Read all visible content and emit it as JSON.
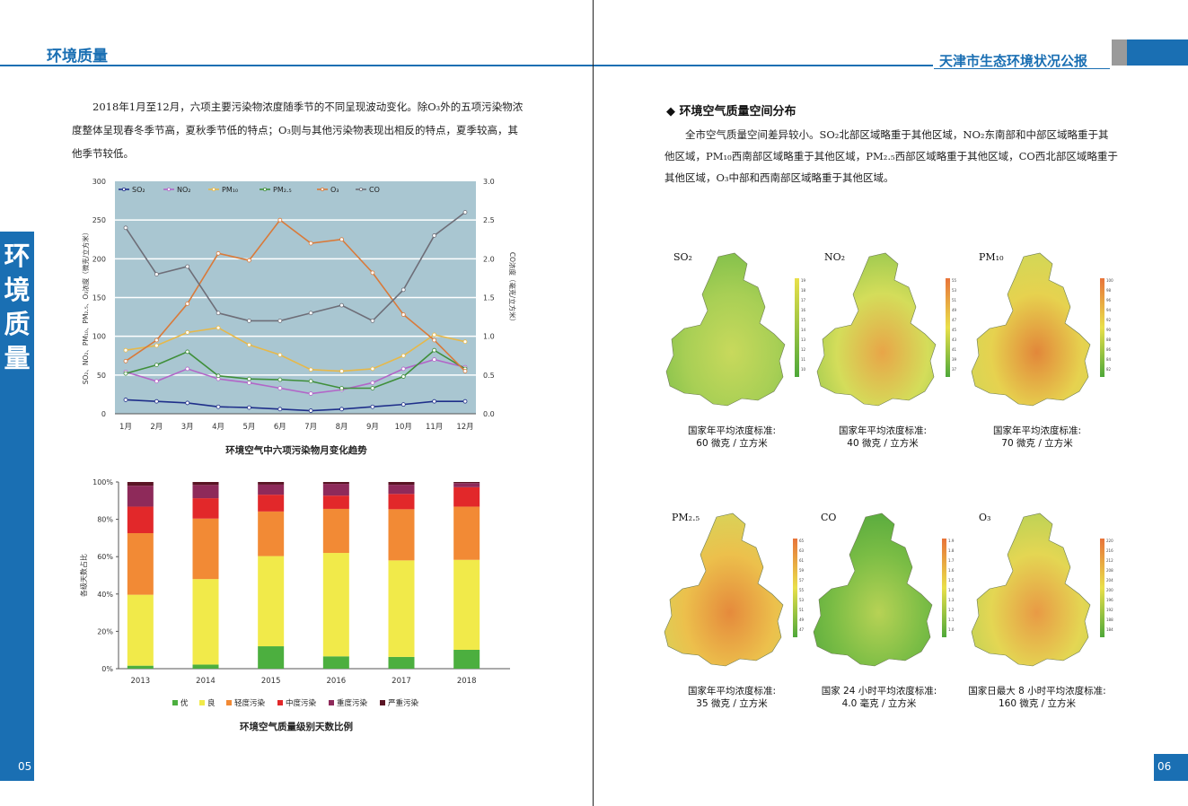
{
  "header": {
    "left_title": "环境质量",
    "right_title": "天津市生态环境状况公报"
  },
  "sidebar": {
    "vertical_title": "环\n境\n质\n量"
  },
  "page_numbers": {
    "left": "05",
    "right": "06"
  },
  "left": {
    "intro_lines": [
      "2018年1月至12月，六项主要污染物浓度随季节的不同呈现波动变化。除O₃外的五项污染物浓",
      "度整体呈现春冬季节高，夏秋季节低的特点；O₃则与其他污染物表现出相反的特点，夏季较高，其",
      "他季节较低。"
    ],
    "line_caption": "环境空气中六项污染物月变化趋势",
    "bar_caption": "环境空气质量级别天数比例"
  },
  "right": {
    "section_title": "◆  环境空气质量空间分布",
    "section_lines": [
      "全市空气质量空间差异较小。SO₂北部区域略重于其他区域，NO₂东南部和中部区域略重于其",
      "他区域，PM₁₀西南部区域略重于其他区域，PM₂.₅西部区域略重于其他区域，CO西北部区域略重于",
      "其他区域，O₃中部和西南部区域略重于其他区域。"
    ],
    "maps": [
      {
        "label": "SO₂",
        "standard_line1": "国家年平均浓度标准:",
        "standard_line2": "60 微克 / 立方米",
        "scale": [
          "19",
          "18",
          "17",
          "16",
          "15",
          "14",
          "13",
          "12",
          "11",
          "10"
        ]
      },
      {
        "label": "NO₂",
        "standard_line1": "国家年平均浓度标准:",
        "standard_line2": "40 微克 / 立方米",
        "scale": [
          "55",
          "53",
          "51",
          "49",
          "47",
          "45",
          "43",
          "41",
          "39",
          "37"
        ]
      },
      {
        "label": "PM₁₀",
        "standard_line1": "国家年平均浓度标准:",
        "standard_line2": "70 微克 / 立方米",
        "scale": [
          "100",
          "98",
          "96",
          "94",
          "92",
          "90",
          "88",
          "86",
          "84",
          "82"
        ]
      },
      {
        "label": "PM₂.₅",
        "standard_line1": "国家年平均浓度标准:",
        "standard_line2": "35 微克 / 立方米",
        "scale": [
          "65",
          "63",
          "61",
          "59",
          "57",
          "55",
          "53",
          "51",
          "49",
          "47"
        ]
      },
      {
        "label": "CO",
        "standard_line1": "国家 24 小时平均浓度标准:",
        "standard_line2": "4.0 毫克 / 立方米",
        "scale": [
          "1.9",
          "1.8",
          "1.7",
          "1.6",
          "1.5",
          "1.4",
          "1.3",
          "1.2",
          "1.1",
          "1.0"
        ]
      },
      {
        "label": "O₃",
        "standard_line1": "国家日最大 8 小时平均浓度标准:",
        "standard_line2": "160 微克 / 立方米",
        "scale": [
          "220",
          "216",
          "212",
          "208",
          "204",
          "200",
          "196",
          "192",
          "188",
          "184"
        ]
      }
    ]
  },
  "colors": {
    "brand": "#1a6fb3",
    "line_plot_bg": "#a9c6d1",
    "so2": "#1f2f8a",
    "no2": "#b266c8",
    "pm10": "#e6b84a",
    "pm25": "#3f8f3a",
    "o3": "#d97a3a",
    "co": "#6e6e78",
    "you": "#4caf3f",
    "liang": "#f1ea4a",
    "light": "#f28a35",
    "moderate": "#e2282a",
    "heavy": "#8e2a5a",
    "severe": "#5a1424"
  },
  "chart_data": [
    {
      "type": "line",
      "title": "",
      "categories": [
        "1月",
        "2月",
        "3月",
        "4月",
        "5月",
        "6月",
        "7月",
        "8月",
        "9月",
        "10月",
        "11月",
        "12月"
      ],
      "ylim": [
        0,
        300
      ],
      "y2lim": [
        0,
        3.0
      ],
      "yticks": [
        "0",
        "50",
        "100",
        "150",
        "200",
        "250",
        "300"
      ],
      "y2ticks": [
        "0.0",
        "0.5",
        "1.0",
        "1.5",
        "2.0",
        "2.5",
        "3.0"
      ],
      "ylabel": "SO₂、NO₂、PM₁₀、PM₂.₅、O₃浓度（微克/立方米）",
      "y2label": "CO浓度（毫克/立方米）",
      "series": [
        {
          "name": "SO₂",
          "axis": "left",
          "color": "#1f2f8a",
          "values": [
            18,
            16,
            14,
            9,
            8,
            6,
            4,
            6,
            9,
            12,
            16,
            16
          ]
        },
        {
          "name": "NO₂",
          "axis": "left",
          "color": "#b266c8",
          "values": [
            54,
            42,
            58,
            45,
            40,
            33,
            26,
            31,
            40,
            58,
            70,
            60
          ]
        },
        {
          "name": "PM₁₀",
          "axis": "left",
          "color": "#e6b84a",
          "values": [
            82,
            88,
            105,
            111,
            89,
            76,
            57,
            55,
            58,
            75,
            102,
            93
          ]
        },
        {
          "name": "PM₂.₅",
          "axis": "left",
          "color": "#3f8f3a",
          "values": [
            52,
            63,
            80,
            49,
            45,
            44,
            42,
            33,
            33,
            48,
            82,
            58
          ]
        },
        {
          "name": "O₃",
          "axis": "left",
          "color": "#d97a3a",
          "values": [
            68,
            95,
            142,
            207,
            198,
            250,
            220,
            225,
            182,
            128,
            95,
            55
          ]
        },
        {
          "name": "CO",
          "axis": "right",
          "color": "#6e6e78",
          "values": [
            2.4,
            1.8,
            1.9,
            1.3,
            1.2,
            1.2,
            1.3,
            1.4,
            1.2,
            1.6,
            2.3,
            2.6
          ]
        }
      ]
    },
    {
      "type": "bar",
      "stacked": true,
      "title": "",
      "categories": [
        "2013",
        "2014",
        "2015",
        "2016",
        "2017",
        "2018"
      ],
      "ylabel": "各级天数占比",
      "yticks": [
        "0%",
        "20%",
        "40%",
        "60%",
        "80%",
        "100%"
      ],
      "ylim": [
        0,
        100
      ],
      "series": [
        {
          "name": "优",
          "color": "#4caf3f",
          "values": [
            1.6,
            2.2,
            12,
            6.6,
            6.3,
            10.1
          ]
        },
        {
          "name": "良",
          "color": "#f1ea4a",
          "values": [
            38,
            45.8,
            48.3,
            55.4,
            51.7,
            48.2
          ]
        },
        {
          "name": "轻度污染",
          "color": "#f28a35",
          "values": [
            33,
            32.4,
            23.9,
            23.6,
            27.4,
            28.5
          ]
        },
        {
          "name": "中度污染",
          "color": "#e2282a",
          "values": [
            14.2,
            10.9,
            9,
            7.1,
            8.2,
            10.4
          ]
        },
        {
          "name": "重度污染",
          "color": "#8e2a5a",
          "values": [
            11.2,
            7.1,
            5.4,
            6.3,
            4.9,
            2.2
          ]
        },
        {
          "name": "严重污染",
          "color": "#5a1424",
          "values": [
            2,
            1.6,
            1.4,
            1,
            1.5,
            0.6
          ]
        }
      ]
    }
  ]
}
